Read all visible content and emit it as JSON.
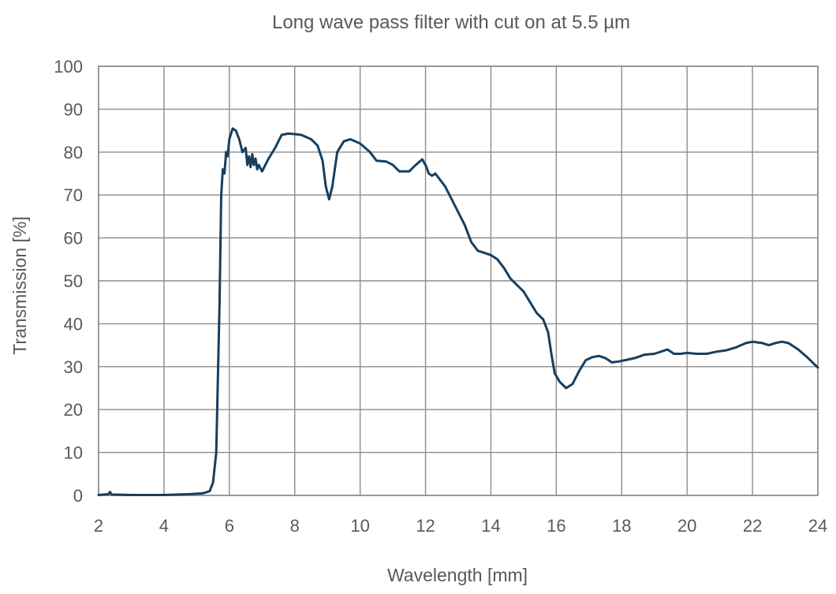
{
  "chart_data": {
    "type": "line",
    "title": "Long wave pass filter with cut on at 5.5 µm",
    "xlabel": "Wavelength [mm]",
    "ylabel": "Transmission [%]",
    "xlim": [
      2,
      24
    ],
    "ylim": [
      0,
      100
    ],
    "xticks": [
      2,
      4,
      6,
      8,
      10,
      12,
      14,
      16,
      18,
      20,
      22,
      24
    ],
    "yticks": [
      0,
      10,
      20,
      30,
      40,
      50,
      60,
      70,
      80,
      90,
      100
    ],
    "grid": true,
    "series": [
      {
        "color": "#173f5f",
        "points": [
          [
            2.0,
            0.1
          ],
          [
            2.3,
            0.3
          ],
          [
            2.35,
            0.8
          ],
          [
            2.4,
            0.2
          ],
          [
            3.0,
            0.1
          ],
          [
            4.0,
            0.1
          ],
          [
            4.8,
            0.3
          ],
          [
            5.2,
            0.5
          ],
          [
            5.4,
            1.0
          ],
          [
            5.5,
            3.0
          ],
          [
            5.6,
            10.0
          ],
          [
            5.7,
            45.0
          ],
          [
            5.75,
            70.0
          ],
          [
            5.8,
            76.0
          ],
          [
            5.85,
            75.0
          ],
          [
            5.9,
            80.0
          ],
          [
            5.95,
            79.0
          ],
          [
            6.0,
            83.0
          ],
          [
            6.1,
            85.5
          ],
          [
            6.2,
            85.0
          ],
          [
            6.3,
            83.0
          ],
          [
            6.4,
            80.0
          ],
          [
            6.5,
            81.0
          ],
          [
            6.55,
            77.0
          ],
          [
            6.6,
            79.0
          ],
          [
            6.65,
            76.5
          ],
          [
            6.7,
            79.5
          ],
          [
            6.75,
            77.0
          ],
          [
            6.8,
            78.5
          ],
          [
            6.85,
            76.0
          ],
          [
            6.9,
            77.0
          ],
          [
            7.0,
            75.5
          ],
          [
            7.1,
            77.0
          ],
          [
            7.2,
            78.5
          ],
          [
            7.4,
            81.0
          ],
          [
            7.6,
            84.0
          ],
          [
            7.8,
            84.3
          ],
          [
            8.0,
            84.2
          ],
          [
            8.2,
            84.0
          ],
          [
            8.5,
            83.0
          ],
          [
            8.7,
            81.5
          ],
          [
            8.85,
            78.0
          ],
          [
            8.95,
            72.0
          ],
          [
            9.05,
            69.0
          ],
          [
            9.15,
            72.0
          ],
          [
            9.3,
            80.0
          ],
          [
            9.5,
            82.5
          ],
          [
            9.7,
            83.0
          ],
          [
            10.0,
            82.0
          ],
          [
            10.3,
            80.0
          ],
          [
            10.5,
            78.0
          ],
          [
            10.8,
            77.8
          ],
          [
            11.0,
            77.0
          ],
          [
            11.2,
            75.5
          ],
          [
            11.5,
            75.5
          ],
          [
            11.7,
            77.0
          ],
          [
            11.9,
            78.3
          ],
          [
            12.0,
            77.0
          ],
          [
            12.1,
            75.0
          ],
          [
            12.2,
            74.5
          ],
          [
            12.3,
            75.0
          ],
          [
            12.4,
            74.0
          ],
          [
            12.6,
            72.0
          ],
          [
            12.8,
            69.0
          ],
          [
            13.0,
            66.0
          ],
          [
            13.2,
            63.0
          ],
          [
            13.4,
            59.0
          ],
          [
            13.6,
            57.0
          ],
          [
            13.8,
            56.5
          ],
          [
            14.0,
            56.0
          ],
          [
            14.2,
            55.0
          ],
          [
            14.4,
            53.0
          ],
          [
            14.6,
            50.5
          ],
          [
            14.8,
            49.0
          ],
          [
            15.0,
            47.5
          ],
          [
            15.2,
            45.0
          ],
          [
            15.4,
            42.5
          ],
          [
            15.6,
            41.0
          ],
          [
            15.75,
            38.0
          ],
          [
            15.85,
            33.0
          ],
          [
            15.95,
            28.5
          ],
          [
            16.1,
            26.5
          ],
          [
            16.3,
            25.0
          ],
          [
            16.5,
            26.0
          ],
          [
            16.7,
            29.0
          ],
          [
            16.9,
            31.5
          ],
          [
            17.1,
            32.2
          ],
          [
            17.3,
            32.5
          ],
          [
            17.5,
            32.0
          ],
          [
            17.7,
            31.0
          ],
          [
            17.9,
            31.2
          ],
          [
            18.1,
            31.5
          ],
          [
            18.4,
            32.0
          ],
          [
            18.7,
            32.8
          ],
          [
            19.0,
            33.0
          ],
          [
            19.2,
            33.5
          ],
          [
            19.4,
            34.0
          ],
          [
            19.6,
            33.0
          ],
          [
            19.8,
            33.0
          ],
          [
            20.0,
            33.2
          ],
          [
            20.3,
            33.0
          ],
          [
            20.6,
            33.0
          ],
          [
            20.9,
            33.5
          ],
          [
            21.2,
            33.8
          ],
          [
            21.5,
            34.5
          ],
          [
            21.8,
            35.5
          ],
          [
            22.0,
            35.8
          ],
          [
            22.3,
            35.5
          ],
          [
            22.5,
            35.0
          ],
          [
            22.7,
            35.5
          ],
          [
            22.9,
            35.8
          ],
          [
            23.1,
            35.5
          ],
          [
            23.4,
            34.0
          ],
          [
            23.7,
            32.0
          ],
          [
            23.9,
            30.5
          ],
          [
            24.0,
            29.8
          ]
        ]
      }
    ]
  }
}
